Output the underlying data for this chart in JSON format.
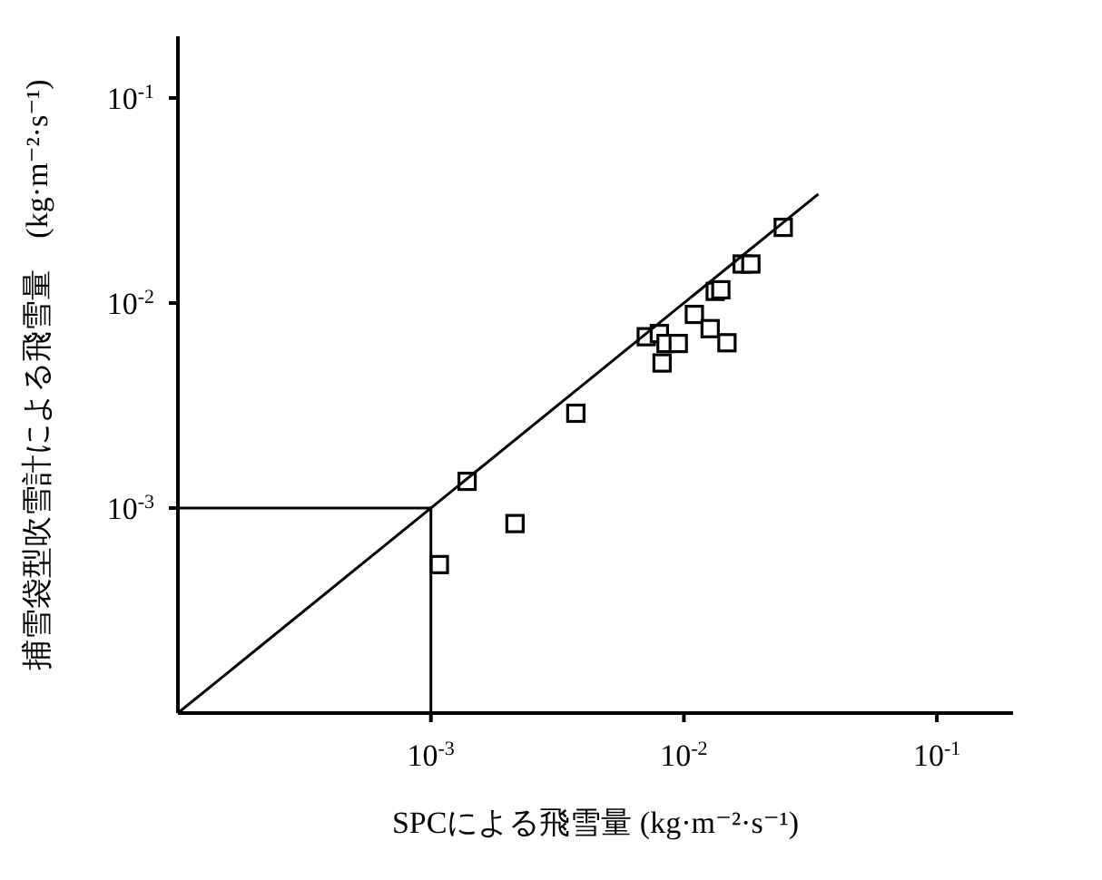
{
  "chart_data": {
    "type": "scatter",
    "xlabel": "SPCによる飛雪量 (kg·m⁻²·s⁻¹)",
    "ylabel": "捕雪袋型吹雪計による飛雪量　(kg·m⁻²·s⁻¹)",
    "log": "xy",
    "xlim": [
      0.0001,
      0.2
    ],
    "ylim": [
      0.0001,
      0.2
    ],
    "xticks": [
      {
        "value": 0.001,
        "label": "10$^{-3}$"
      },
      {
        "value": 0.01,
        "label": "10$^{-2}$"
      },
      {
        "value": 0.1,
        "label": "10$^{-1}$"
      }
    ],
    "yticks": [
      {
        "value": 0.001,
        "label": "10$^{-3}$"
      },
      {
        "value": 0.01,
        "label": "10$^{-2}$"
      },
      {
        "value": 0.1,
        "label": "10$^{-1}$"
      }
    ],
    "series": [
      {
        "marker": "square",
        "color": "#000000",
        "x": [
          0.00139,
          0.00215,
          0.00108,
          0.00374,
          0.0071,
          0.008,
          0.0085,
          0.0095,
          0.0082,
          0.011,
          0.0127,
          0.0148,
          0.0133,
          0.014,
          0.017,
          0.0184,
          0.0247
        ],
        "values": [
          0.00135,
          0.00084,
          0.00053,
          0.0029,
          0.00685,
          0.0071,
          0.00635,
          0.00635,
          0.0051,
          0.0088,
          0.0075,
          0.0064,
          0.0114,
          0.0116,
          0.0155,
          0.0155,
          0.0234
        ]
      },
      {
        "type": "line",
        "marker": "none",
        "color": "#000000",
        "line_style": "solid",
        "x": [
          0.0001,
          0.034
        ],
        "values": [
          0.0001,
          0.034
        ]
      },
      {
        "type": "line",
        "marker": "none",
        "color": "#000000",
        "line_style": "solid",
        "x": [
          0.0001,
          0.001,
          0.001
        ],
        "values": [
          0.001,
          0.001,
          0.0001
        ]
      }
    ]
  }
}
